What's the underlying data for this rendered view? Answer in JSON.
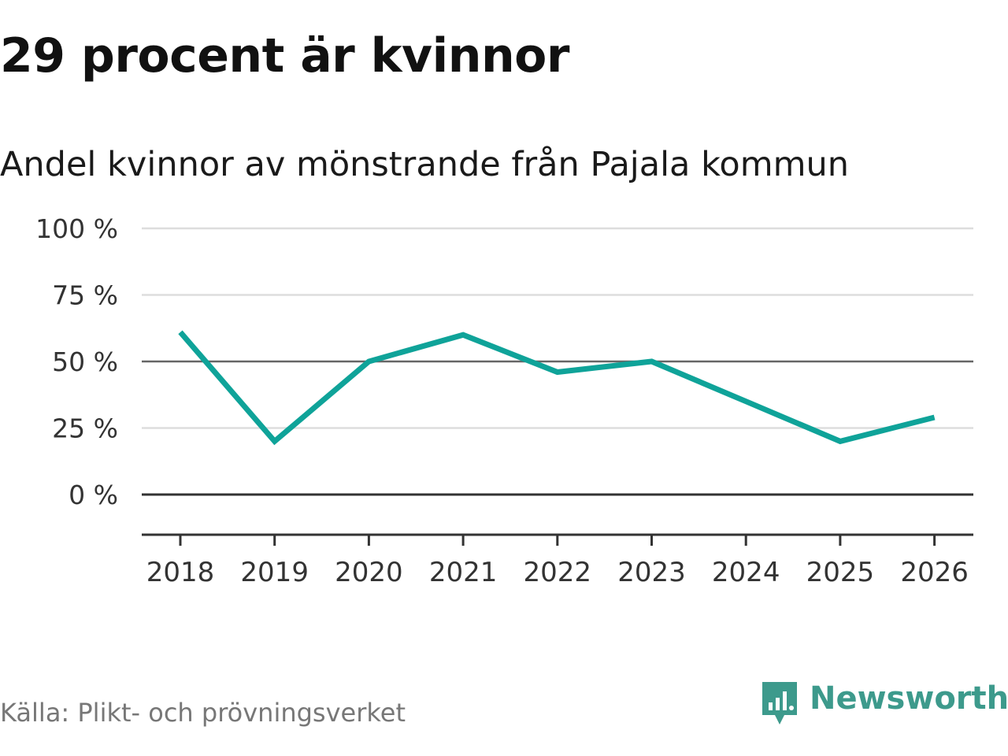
{
  "title": "29 procent är kvinnor",
  "subtitle": "Andel kvinnor av mönstrande från Pajala kommun",
  "source": "Källa: Plikt- och prövningsverket",
  "brand": {
    "name": "Newsworthy",
    "color": "#3d9a8c",
    "icon": "newsworthy-logo-icon"
  },
  "colors": {
    "line": "#0fa399",
    "grid": "#dddddd",
    "reference": "#666666",
    "baseline": "#333333"
  },
  "chart_data": {
    "type": "line",
    "title": "29 procent är kvinnor",
    "subtitle": "Andel kvinnor av mönstrande från Pajala kommun",
    "xlabel": "",
    "ylabel": "",
    "categories": [
      "2018",
      "2019",
      "2020",
      "2021",
      "2022",
      "2023",
      "2024",
      "2025",
      "2026"
    ],
    "series": [
      {
        "name": "Andel kvinnor",
        "values": [
          61,
          20,
          50,
          60,
          46,
          50,
          35,
          20,
          29
        ]
      }
    ],
    "ylim": [
      -15,
      100
    ],
    "yticks": [
      0,
      25,
      50,
      75,
      100
    ],
    "ytick_labels": [
      "0 %",
      "25 %",
      "50 %",
      "75 %",
      "100 %"
    ],
    "grid": true,
    "legend": "none"
  }
}
